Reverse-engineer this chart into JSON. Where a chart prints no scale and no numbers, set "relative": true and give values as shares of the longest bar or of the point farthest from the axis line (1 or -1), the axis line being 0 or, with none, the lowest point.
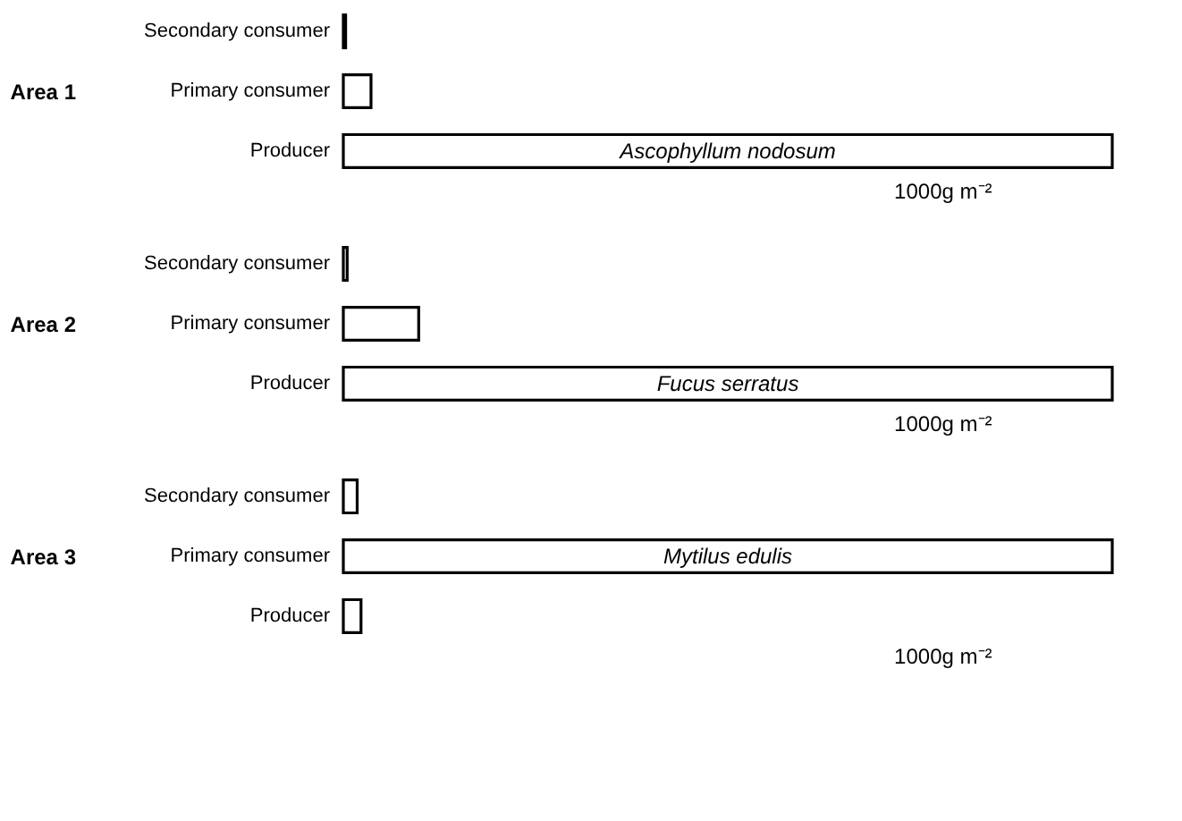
{
  "chart_data": [
    {
      "type": "bar",
      "orientation": "horizontal",
      "relative": true,
      "ylabel": "Area 1",
      "categories": [
        "Secondary consumer",
        "Primary consumer",
        "Producer"
      ],
      "series": [
        {
          "color": "#ffffff",
          "values": [
            0.003,
            0.036,
            1
          ]
        }
      ],
      "annotations": [
        "Ascophyllum nodosum",
        "1000g m⁻²"
      ]
    },
    {
      "type": "bar",
      "orientation": "horizontal",
      "relative": true,
      "ylabel": "Area 2",
      "categories": [
        "Secondary consumer",
        "Primary consumer",
        "Producer"
      ],
      "series": [
        {
          "color": "#ffffff",
          "values": [
            0.005,
            0.098,
            1
          ]
        }
      ],
      "annotations": [
        "Fucus serratus",
        "1000g m⁻²"
      ]
    },
    {
      "type": "bar",
      "orientation": "horizontal",
      "relative": true,
      "ylabel": "Area 3",
      "categories": [
        "Secondary consumer",
        "Primary consumer",
        "Producer"
      ],
      "series": [
        {
          "color": "#ffffff",
          "values": [
            0.018,
            1,
            0.023
          ]
        }
      ],
      "annotations": [
        "Mytilus edulis",
        "1000g m⁻²"
      ]
    }
  ]
}
